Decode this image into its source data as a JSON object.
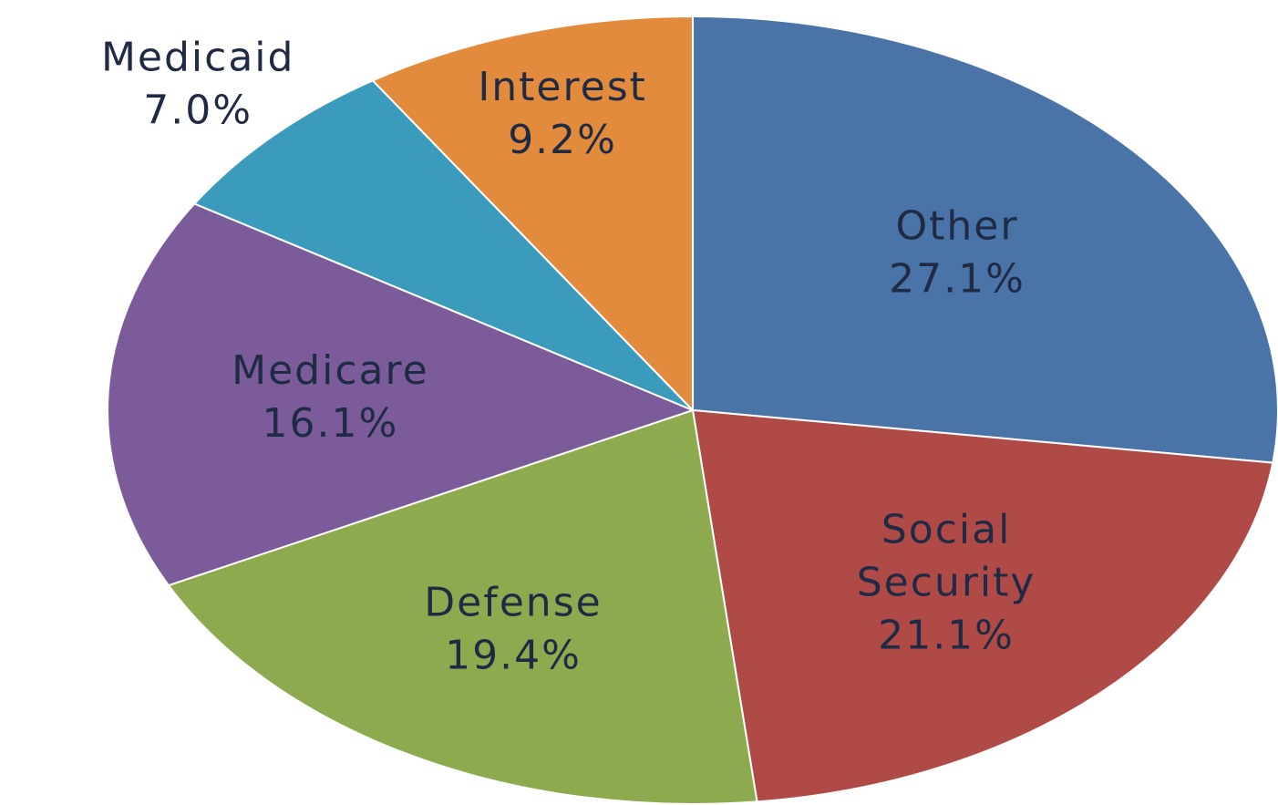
{
  "chart_data": {
    "type": "pie",
    "title": "",
    "slices": [
      {
        "name": "Other",
        "label_lines": [
          "Other"
        ],
        "value": 27.1,
        "value_label": "27.1%",
        "color": "#4a74a8"
      },
      {
        "name": "Social Security",
        "label_lines": [
          "Social",
          "Security"
        ],
        "value": 21.1,
        "value_label": "21.1%",
        "color": "#b04a47"
      },
      {
        "name": "Defense",
        "label_lines": [
          "Defense"
        ],
        "value": 19.4,
        "value_label": "19.4%",
        "color": "#8dab4e"
      },
      {
        "name": "Medicare",
        "label_lines": [
          "Medicare"
        ],
        "value": 16.1,
        "value_label": "16.1%",
        "color": "#7b5b9a"
      },
      {
        "name": "Medicaid",
        "label_lines": [
          "Medicaid"
        ],
        "value": 7.0,
        "value_label": "7.0%",
        "color": "#3b9bbc"
      },
      {
        "name": "Interest",
        "label_lines": [
          "Interest"
        ],
        "value": 9.2,
        "value_label": "9.2%",
        "color": "#e38b3c"
      }
    ],
    "start_angle_deg": 0,
    "direction": "clockwise",
    "data_labels": true,
    "legend": "none"
  }
}
